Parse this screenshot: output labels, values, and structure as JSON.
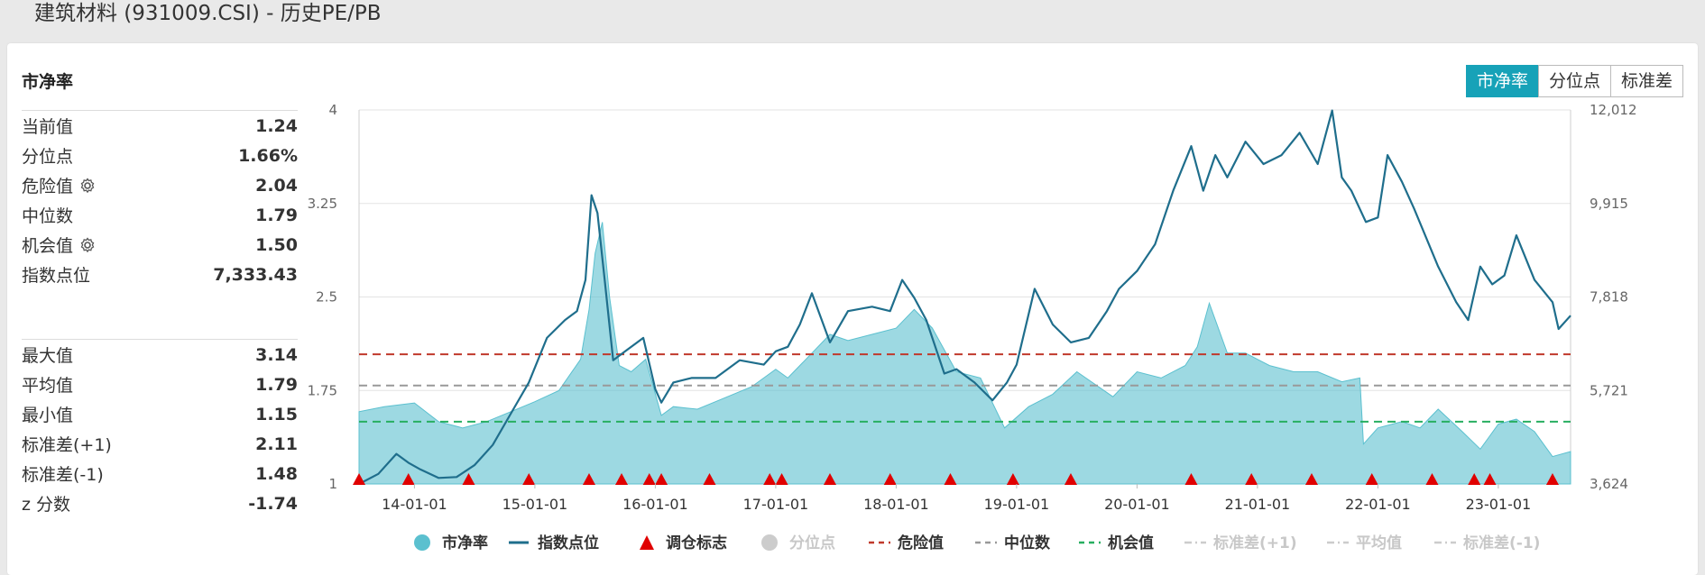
{
  "page": {
    "title": "建筑材料 (931009.CSI) - 历史PE/PB"
  },
  "panel": {
    "title": "市净率",
    "stats_top": [
      {
        "label": "当前值",
        "value": "1.24",
        "gear": false
      },
      {
        "label": "分位点",
        "value": "1.66%",
        "gear": false
      },
      {
        "label": "危险值",
        "value": "2.04",
        "gear": true
      },
      {
        "label": "中位数",
        "value": "1.79",
        "gear": false
      },
      {
        "label": "机会值",
        "value": "1.50",
        "gear": true
      },
      {
        "label": "指数点位",
        "value": "7,333.43",
        "gear": false
      }
    ],
    "stats_bottom": [
      {
        "label": "最大值",
        "value": "3.14"
      },
      {
        "label": "平均值",
        "value": "1.79"
      },
      {
        "label": "最小值",
        "value": "1.15"
      },
      {
        "label": "标准差(+1)",
        "value": "2.11"
      },
      {
        "label": "标准差(-1)",
        "value": "1.48"
      },
      {
        "label": "z 分数",
        "value": "-1.74"
      }
    ]
  },
  "toggle": {
    "options": [
      "市净率",
      "分位点",
      "标准差"
    ],
    "active": 0
  },
  "chart_data": {
    "type": "area",
    "left_axis": {
      "ticks": [
        "1",
        "1.75",
        "2.5",
        "3.25",
        "4"
      ],
      "min": 1,
      "max": 4
    },
    "right_axis": {
      "ticks": [
        "3,624",
        "5,721",
        "7,818",
        "9,915",
        "12,012"
      ],
      "min": 3624,
      "max": 12012
    },
    "x_ticks": [
      "14-01-01",
      "15-01-01",
      "16-01-01",
      "17-01-01",
      "18-01-01",
      "19-01-01",
      "20-01-01",
      "21-01-01",
      "22-01-01",
      "23-01-01"
    ],
    "x_range": [
      2013.54,
      2023.6
    ],
    "pb_series": {
      "name": "市净率",
      "color": "#5bc0cf",
      "x": [
        2013.54,
        2013.75,
        2014.0,
        2014.2,
        2014.4,
        2014.6,
        2014.8,
        2015.0,
        2015.2,
        2015.38,
        2015.45,
        2015.5,
        2015.56,
        2015.62,
        2015.7,
        2015.8,
        2015.92,
        2016.05,
        2016.15,
        2016.35,
        2016.55,
        2016.8,
        2017.0,
        2017.1,
        2017.3,
        2017.45,
        2017.6,
        2017.8,
        2018.0,
        2018.15,
        2018.3,
        2018.5,
        2018.7,
        2018.9,
        2019.1,
        2019.3,
        2019.5,
        2019.8,
        2020.0,
        2020.2,
        2020.4,
        2020.5,
        2020.6,
        2020.75,
        2020.9,
        2021.1,
        2021.3,
        2021.5,
        2021.7,
        2021.85,
        2021.88,
        2022.0,
        2022.2,
        2022.35,
        2022.5,
        2022.7,
        2022.85,
        2023.0,
        2023.15,
        2023.3,
        2023.45,
        2023.6
      ],
      "y": [
        1.58,
        1.62,
        1.65,
        1.5,
        1.45,
        1.5,
        1.58,
        1.66,
        1.75,
        2.0,
        2.4,
        2.85,
        3.1,
        2.5,
        1.95,
        1.9,
        2.0,
        1.55,
        1.62,
        1.6,
        1.68,
        1.78,
        1.92,
        1.85,
        2.05,
        2.2,
        2.15,
        2.2,
        2.25,
        2.4,
        2.25,
        1.9,
        1.85,
        1.45,
        1.62,
        1.72,
        1.9,
        1.7,
        1.9,
        1.85,
        1.95,
        2.1,
        2.45,
        2.05,
        2.05,
        1.95,
        1.9,
        1.9,
        1.82,
        1.85,
        1.32,
        1.45,
        1.5,
        1.45,
        1.6,
        1.42,
        1.28,
        1.48,
        1.52,
        1.42,
        1.22,
        1.26
      ]
    },
    "index_series": {
      "name": "指数点位",
      "color": "#1f6e8c",
      "x": [
        2013.54,
        2013.7,
        2013.85,
        2013.95,
        2014.05,
        2014.2,
        2014.35,
        2014.5,
        2014.65,
        2014.8,
        2014.95,
        2015.1,
        2015.25,
        2015.35,
        2015.42,
        2015.47,
        2015.52,
        2015.58,
        2015.65,
        2015.75,
        2015.9,
        2016.0,
        2016.05,
        2016.15,
        2016.3,
        2016.5,
        2016.7,
        2016.9,
        2017.0,
        2017.1,
        2017.2,
        2017.3,
        2017.45,
        2017.6,
        2017.8,
        2017.95,
        2018.05,
        2018.15,
        2018.25,
        2018.4,
        2018.5,
        2018.65,
        2018.8,
        2018.92,
        2019.0,
        2019.15,
        2019.3,
        2019.45,
        2019.6,
        2019.75,
        2019.85,
        2020.0,
        2020.15,
        2020.3,
        2020.45,
        2020.55,
        2020.65,
        2020.75,
        2020.9,
        2021.05,
        2021.2,
        2021.35,
        2021.5,
        2021.62,
        2021.7,
        2021.78,
        2021.9,
        2022.0,
        2022.08,
        2022.2,
        2022.3,
        2022.5,
        2022.65,
        2022.75,
        2022.85,
        2022.95,
        2023.05,
        2023.15,
        2023.3,
        2023.45,
        2023.5,
        2023.6
      ],
      "y": [
        3624,
        3850,
        4300,
        4100,
        3950,
        3760,
        3780,
        4050,
        4500,
        5200,
        5900,
        6900,
        7300,
        7500,
        8200,
        10100,
        9700,
        8200,
        6400,
        6600,
        6900,
        5750,
        5450,
        5900,
        6000,
        6000,
        6400,
        6300,
        6600,
        6700,
        7200,
        7900,
        6800,
        7500,
        7600,
        7500,
        8200,
        7800,
        7300,
        6100,
        6200,
        5900,
        5500,
        5900,
        6300,
        8000,
        7200,
        6800,
        6900,
        7500,
        8000,
        8400,
        9000,
        10200,
        11200,
        10200,
        11000,
        10500,
        11300,
        10800,
        11000,
        11500,
        10800,
        12000,
        10500,
        10200,
        9500,
        9600,
        11000,
        10400,
        9800,
        8500,
        7700,
        7300,
        8500,
        8100,
        8300,
        9200,
        8200,
        7700,
        7100,
        7400
      ]
    },
    "danger_value": 2.04,
    "median_value": 1.79,
    "opportunity_value": 1.5,
    "markers_x": [
      2013.54,
      2013.95,
      2014.45,
      2014.95,
      2015.45,
      2015.72,
      2015.95,
      2016.05,
      2016.45,
      2016.95,
      2017.05,
      2017.45,
      2017.95,
      2018.45,
      2018.97,
      2019.45,
      2020.45,
      2020.95,
      2021.45,
      2021.95,
      2022.45,
      2022.8,
      2022.93,
      2023.45
    ],
    "legend": [
      {
        "label": "市净率",
        "kind": "dot",
        "color": "#5bc0cf",
        "enabled": true
      },
      {
        "label": "指数点位",
        "kind": "line",
        "color": "#1f6e8c",
        "enabled": true
      },
      {
        "label": "调仓标志",
        "kind": "triangle",
        "color": "#e00000",
        "enabled": true
      },
      {
        "label": "分位点",
        "kind": "dot",
        "color": "#cccccc",
        "enabled": false
      },
      {
        "label": "危险值",
        "kind": "dash",
        "color": "#c0392b",
        "enabled": true
      },
      {
        "label": "中位数",
        "kind": "dash",
        "color": "#999999",
        "enabled": true
      },
      {
        "label": "机会值",
        "kind": "dash",
        "color": "#27ae60",
        "enabled": true
      },
      {
        "label": "标准差(+1)",
        "kind": "dashdot",
        "color": "#cccccc",
        "enabled": false
      },
      {
        "label": "平均值",
        "kind": "dashdot",
        "color": "#cccccc",
        "enabled": false
      },
      {
        "label": "标准差(-1)",
        "kind": "dashdot",
        "color": "#cccccc",
        "enabled": false
      }
    ]
  }
}
